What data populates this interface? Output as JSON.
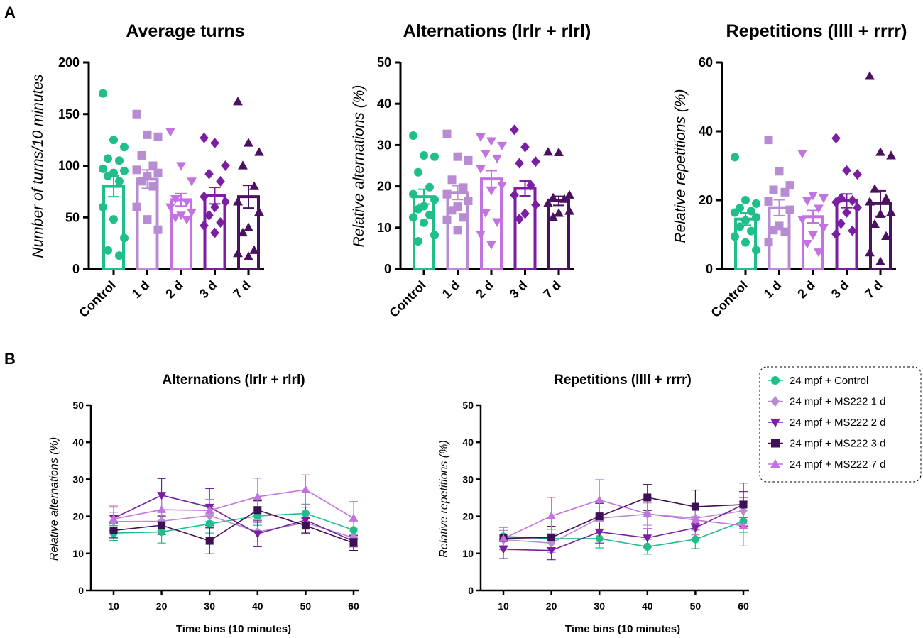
{
  "panel_labels": [
    "A",
    "B"
  ],
  "colors": {
    "control": "#1fbe8a",
    "d1": "#b88cd3",
    "d2": "#c373e0",
    "d3": "#7b1fa2",
    "d7": "#4a1160",
    "line_d3": "#3d0f55"
  },
  "chart_data": [
    {
      "type": "bar",
      "title": "Average turns",
      "ylabel": "Number of turns/10 minutes",
      "xlabel": "",
      "categories": [
        "Control",
        "1 d",
        "2 d",
        "3 d",
        "7 d"
      ],
      "ylim": [
        0,
        200
      ],
      "yticks": [
        0,
        50,
        100,
        150,
        200
      ],
      "means": [
        80,
        87,
        67,
        71,
        70
      ],
      "sem": [
        10,
        9,
        6,
        8,
        11
      ],
      "markers": [
        "circle",
        "square",
        "triangle-down",
        "diamond",
        "triangle-up"
      ],
      "points": [
        [
          170,
          125,
          118,
          107,
          105,
          97,
          95,
          93,
          90,
          85,
          60,
          48,
          30,
          18,
          13
        ],
        [
          150,
          130,
          128,
          110,
          100,
          96,
          93,
          90,
          85,
          80,
          60,
          48,
          38
        ],
        [
          133,
          100,
          85,
          68,
          65,
          60,
          55,
          52,
          50,
          48
        ],
        [
          127,
          122,
          100,
          92,
          85,
          70,
          65,
          60,
          52,
          45,
          42,
          35
        ],
        [
          162,
          122,
          113,
          100,
          80,
          65,
          55,
          40,
          35,
          18,
          15,
          12
        ]
      ]
    },
    {
      "type": "bar",
      "title": "Alternations (lrlr + rlrl)",
      "ylabel": "Relative alternations (%)",
      "xlabel": "",
      "categories": [
        "Control",
        "1 d",
        "2 d",
        "3 d",
        "7 d"
      ],
      "ylim": [
        0,
        50
      ],
      "yticks": [
        0,
        10,
        20,
        30,
        40,
        50
      ],
      "means": [
        17.5,
        18.5,
        21.8,
        19.5,
        16.5
      ],
      "sem": [
        1.8,
        1.7,
        2.0,
        1.8,
        1.1
      ],
      "markers": [
        "circle",
        "square",
        "triangle-down",
        "diamond",
        "triangle-up"
      ],
      "points": [
        [
          32.3,
          27.5,
          27.2,
          23.4,
          19.8,
          18.1,
          16.8,
          15.2,
          14.5,
          13.1,
          12.5,
          11.2,
          8.2,
          6.7
        ],
        [
          32.7,
          27.2,
          26.3,
          21.6,
          19.7,
          18.1,
          16.5,
          15.1,
          14.2,
          12.5,
          11.9,
          9.4
        ],
        [
          32.0,
          31.0,
          29.9,
          28.0,
          26.8,
          24.3,
          20.2,
          19.0,
          13.6,
          11.4,
          8.4,
          5.9
        ],
        [
          33.7,
          29.5,
          26.0,
          25.6,
          20.3,
          17.9,
          15.5,
          13.4,
          12.1
        ],
        [
          28.3,
          28.2,
          17.9,
          17.2,
          16.9,
          15.9,
          14.0,
          13.5,
          12.5
        ]
      ]
    },
    {
      "type": "bar",
      "title": "Repetitions (llll + rrrr)",
      "ylabel": "Relative repetitions (%)",
      "xlabel": "",
      "categories": [
        "Control",
        "1 d",
        "2 d",
        "3 d",
        "7 d"
      ],
      "ylim": [
        0,
        60
      ],
      "yticks": [
        0,
        20,
        40,
        60
      ],
      "means": [
        14.5,
        17.8,
        15.2,
        19.8,
        19.0
      ],
      "sem": [
        1.8,
        2.3,
        1.8,
        2.0,
        3.7
      ],
      "markers": [
        "circle",
        "square",
        "triangle-down",
        "diamond",
        "triangle-up"
      ],
      "points": [
        [
          32.5,
          20.0,
          19.0,
          17.7,
          16.8,
          16.4,
          15.0,
          14.1,
          12.3,
          11.0,
          9.4,
          7.7,
          5.5
        ],
        [
          37.5,
          28.4,
          24.3,
          23.0,
          22.3,
          19.6,
          17.2,
          12.5,
          11.3,
          10.8,
          7.8
        ],
        [
          33.6,
          21.4,
          20.6,
          19.8,
          17.6,
          14.4,
          12.0,
          9.9,
          7.4,
          4.9
        ],
        [
          38.0,
          28.6,
          27.5,
          20.6,
          19.9,
          19.4,
          17.8,
          16.4,
          13.2,
          11.1,
          10.1
        ],
        [
          56.0,
          33.9,
          32.9,
          23.2,
          20.4,
          19.5,
          16.4,
          15.9,
          13.0,
          9.5,
          4.7,
          2.1
        ]
      ]
    },
    {
      "type": "line",
      "title": "Alternations (lrlr + rlrl)",
      "ylabel": "Relative alternations (%)",
      "xlabel": "Time bins (10 minutes)",
      "x": [
        10,
        20,
        30,
        40,
        50,
        60
      ],
      "ylim": [
        0,
        50
      ],
      "yticks": [
        0,
        10,
        20,
        30,
        40,
        50
      ],
      "series": [
        {
          "name": "24 mpf + Control",
          "marker": "circle",
          "values": [
            15.5,
            15.8,
            18.0,
            20.1,
            20.8,
            16.3
          ],
          "err": [
            2.0,
            3.0,
            2.5,
            2.5,
            2.5,
            2.5
          ]
        },
        {
          "name": "24 mpf + MS222 1 d",
          "marker": "diamond",
          "values": [
            18.6,
            18.7,
            20.2,
            15.8,
            18.3,
            14.2
          ],
          "err": [
            2.5,
            2.5,
            2.5,
            2.5,
            2.5,
            2.5
          ]
        },
        {
          "name": "24 mpf + MS222 2 d",
          "marker": "triangle-down",
          "values": [
            19.5,
            25.7,
            22.5,
            15.3,
            19.0,
            13.3
          ],
          "err": [
            3.0,
            4.5,
            5.0,
            3.5,
            3.5,
            2.5
          ]
        },
        {
          "name": "24 mpf + MS222 3 d",
          "marker": "square",
          "values": [
            16.2,
            17.6,
            13.4,
            21.7,
            17.5,
            12.8
          ],
          "err": [
            2.0,
            2.5,
            3.5,
            2.5,
            2.0,
            2.0
          ]
        },
        {
          "name": "24 mpf + MS222 7 d",
          "marker": "triangle-up",
          "values": [
            19.3,
            21.8,
            21.6,
            25.3,
            27.2,
            19.5
          ],
          "err": [
            3.5,
            3.5,
            3.0,
            5.0,
            4.0,
            4.5
          ]
        }
      ]
    },
    {
      "type": "line",
      "title": "Repetitions (llll + rrrr)",
      "ylabel": "Relative repetitions (%)",
      "xlabel": "Time bins (10 minutes)",
      "x": [
        10,
        20,
        30,
        40,
        50,
        60
      ],
      "ylim": [
        0,
        50
      ],
      "yticks": [
        0,
        10,
        20,
        30,
        40,
        50
      ],
      "series": [
        {
          "name": "24 mpf + Control",
          "marker": "circle",
          "values": [
            14.6,
            14.0,
            14.0,
            11.8,
            13.8,
            18.7
          ],
          "err": [
            2.5,
            2.5,
            2.5,
            2.0,
            2.5,
            3.0
          ]
        },
        {
          "name": "24 mpf + MS222 1 d",
          "marker": "diamond",
          "values": [
            13.7,
            12.8,
            19.5,
            20.6,
            19.5,
            21.5
          ],
          "err": [
            2.5,
            2.5,
            3.0,
            3.0,
            3.0,
            3.5
          ]
        },
        {
          "name": "24 mpf + MS222 2 d",
          "marker": "triangle-down",
          "values": [
            11.1,
            10.8,
            15.8,
            14.2,
            16.9,
            23.2
          ],
          "err": [
            2.5,
            2.5,
            3.0,
            2.5,
            3.0,
            3.5
          ]
        },
        {
          "name": "24 mpf + MS222 3 d",
          "marker": "square",
          "values": [
            14.1,
            14.3,
            20.0,
            25.1,
            22.6,
            23.2
          ],
          "err": [
            3.0,
            3.0,
            3.5,
            3.5,
            4.5,
            5.8
          ]
        },
        {
          "name": "24 mpf + MS222 7 d",
          "marker": "triangle-up",
          "values": [
            14.0,
            20.1,
            24.4,
            20.7,
            19.0,
            17.5
          ],
          "err": [
            3.0,
            5.0,
            5.5,
            4.0,
            4.0,
            5.5
          ]
        }
      ]
    }
  ],
  "legend": [
    "24 mpf + Control",
    "24 mpf + MS222 1 d",
    "24 mpf + MS222 2 d",
    "24 mpf + MS222 3 d",
    "24 mpf + MS222 7 d"
  ]
}
